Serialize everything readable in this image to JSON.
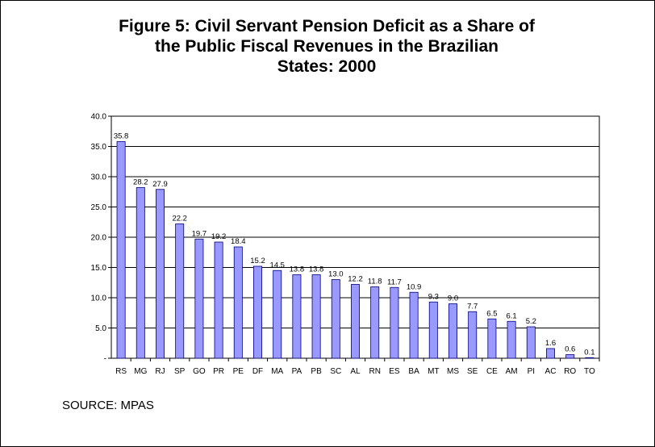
{
  "chart_data": {
    "type": "bar",
    "title_lines": [
      "Figure 5: Civil Servant Pension Deficit as a Share of",
      "the Public Fiscal Revenues in the Brazilian",
      "States:   2000"
    ],
    "categories": [
      "RS",
      "MG",
      "RJ",
      "SP",
      "GO",
      "PR",
      "PE",
      "DF",
      "MA",
      "PA",
      "PB",
      "SC",
      "AL",
      "RN",
      "ES",
      "BA",
      "MT",
      "MS",
      "SE",
      "CE",
      "AM",
      "PI",
      "AC",
      "RO",
      "TO"
    ],
    "values": [
      35.8,
      28.2,
      27.9,
      22.2,
      19.7,
      19.2,
      18.4,
      15.2,
      14.5,
      13.8,
      13.8,
      13.0,
      12.2,
      11.8,
      11.7,
      10.9,
      9.3,
      9.0,
      7.7,
      6.5,
      6.1,
      5.2,
      1.6,
      0.6,
      0.1
    ],
    "data_labels": [
      "35.8",
      "28.2",
      "27.9",
      "22.2",
      "19.7",
      "19.2",
      "18.4",
      "15.2",
      "14.5",
      "13.8",
      "13.8",
      "13.0",
      "12.2",
      "11.8",
      "11.7",
      "10.9",
      "9.3",
      "9.0",
      "7.7",
      "6.5",
      "6.1",
      "5.2",
      "1.6",
      "0.6",
      "0.1"
    ],
    "y_ticks": [
      "-",
      "5.0",
      "10.0",
      "15.0",
      "20.0",
      "25.0",
      "30.0",
      "35.0",
      "40.0"
    ],
    "ylim": [
      0,
      40
    ],
    "grid": true,
    "bar_color": "#9999ff",
    "bar_edge_color": "#000080"
  },
  "source": "SOURCE: MPAS"
}
